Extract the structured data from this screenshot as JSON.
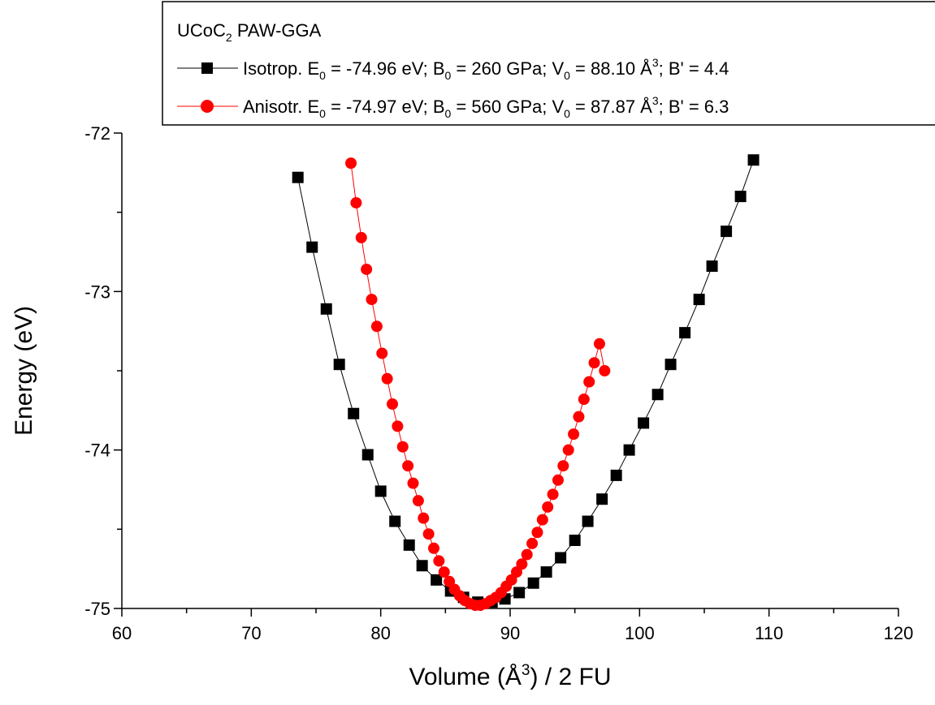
{
  "chart_data": {
    "type": "scatter",
    "xlabel": "Volume (Å³) / 2 FU",
    "ylabel": "Energy (eV)",
    "xlim": [
      60,
      120
    ],
    "ylim": [
      -75,
      -72
    ],
    "x_ticks": [
      "60",
      "70",
      "80",
      "90",
      "100",
      "110",
      "120"
    ],
    "y_ticks": [
      "-75",
      "-74",
      "-73",
      "-72"
    ],
    "legend": {
      "position": "top",
      "title": "UCoC₂ PAW-GGA",
      "entries": [
        "Isotrop. E₀ = -74.96 eV; B₀ = 260 GPa; V₀ = 88.10 Å³; B' = 4.4",
        "Anisotr. E₀ = -74.97 eV; B₀ = 560 GPa; V₀ = 87.87 Å³; B' = 6.3"
      ]
    },
    "series": [
      {
        "color": "#000000",
        "marker": "square",
        "x": [
          73.6,
          74.7,
          75.8,
          76.8,
          77.9,
          79.0,
          80.0,
          81.1,
          82.2,
          83.2,
          84.3,
          85.4,
          86.4,
          87.5,
          88.6,
          89.6,
          90.7,
          91.8,
          92.8,
          93.9,
          95.0,
          96.0,
          97.1,
          98.2,
          99.2,
          100.3,
          101.4,
          102.4,
          103.5,
          104.6,
          105.6,
          106.7,
          107.8,
          108.8
        ],
        "y": [
          -72.28,
          -72.72,
          -73.11,
          -73.46,
          -73.77,
          -74.03,
          -74.26,
          -74.45,
          -74.6,
          -74.73,
          -74.82,
          -74.89,
          -74.93,
          -74.96,
          -74.96,
          -74.94,
          -74.9,
          -74.84,
          -74.77,
          -74.68,
          -74.57,
          -74.45,
          -74.31,
          -74.16,
          -74.0,
          -73.83,
          -73.65,
          -73.46,
          -73.26,
          -73.05,
          -72.84,
          -72.62,
          -72.4,
          -72.17
        ]
      },
      {
        "color": "#ff0000",
        "marker": "circle",
        "x": [
          77.7,
          78.1,
          78.5,
          78.9,
          79.3,
          79.7,
          80.1,
          80.5,
          80.9,
          81.3,
          81.7,
          82.1,
          82.5,
          82.9,
          83.3,
          83.7,
          84.1,
          84.5,
          84.9,
          85.3,
          85.7,
          86.1,
          86.5,
          86.9,
          87.3,
          87.7,
          88.1,
          88.5,
          88.9,
          89.3,
          89.7,
          90.1,
          90.5,
          90.9,
          91.3,
          91.7,
          92.1,
          92.5,
          92.9,
          93.3,
          93.7,
          94.1,
          94.5,
          94.9,
          95.3,
          95.7,
          96.1,
          96.5,
          96.9,
          97.3
        ],
        "y": [
          -72.19,
          -72.44,
          -72.66,
          -72.86,
          -73.05,
          -73.22,
          -73.39,
          -73.55,
          -73.71,
          -73.85,
          -73.98,
          -74.1,
          -74.21,
          -74.32,
          -74.43,
          -74.53,
          -74.62,
          -74.7,
          -74.77,
          -74.83,
          -74.88,
          -74.92,
          -74.95,
          -74.97,
          -74.98,
          -74.98,
          -74.97,
          -74.95,
          -74.93,
          -74.9,
          -74.86,
          -74.82,
          -74.77,
          -74.72,
          -74.66,
          -74.59,
          -74.52,
          -74.44,
          -74.36,
          -74.28,
          -74.19,
          -74.1,
          -74.0,
          -73.9,
          -73.79,
          -73.68,
          -73.57,
          -73.45,
          -73.33,
          -73.5
        ]
      }
    ]
  }
}
